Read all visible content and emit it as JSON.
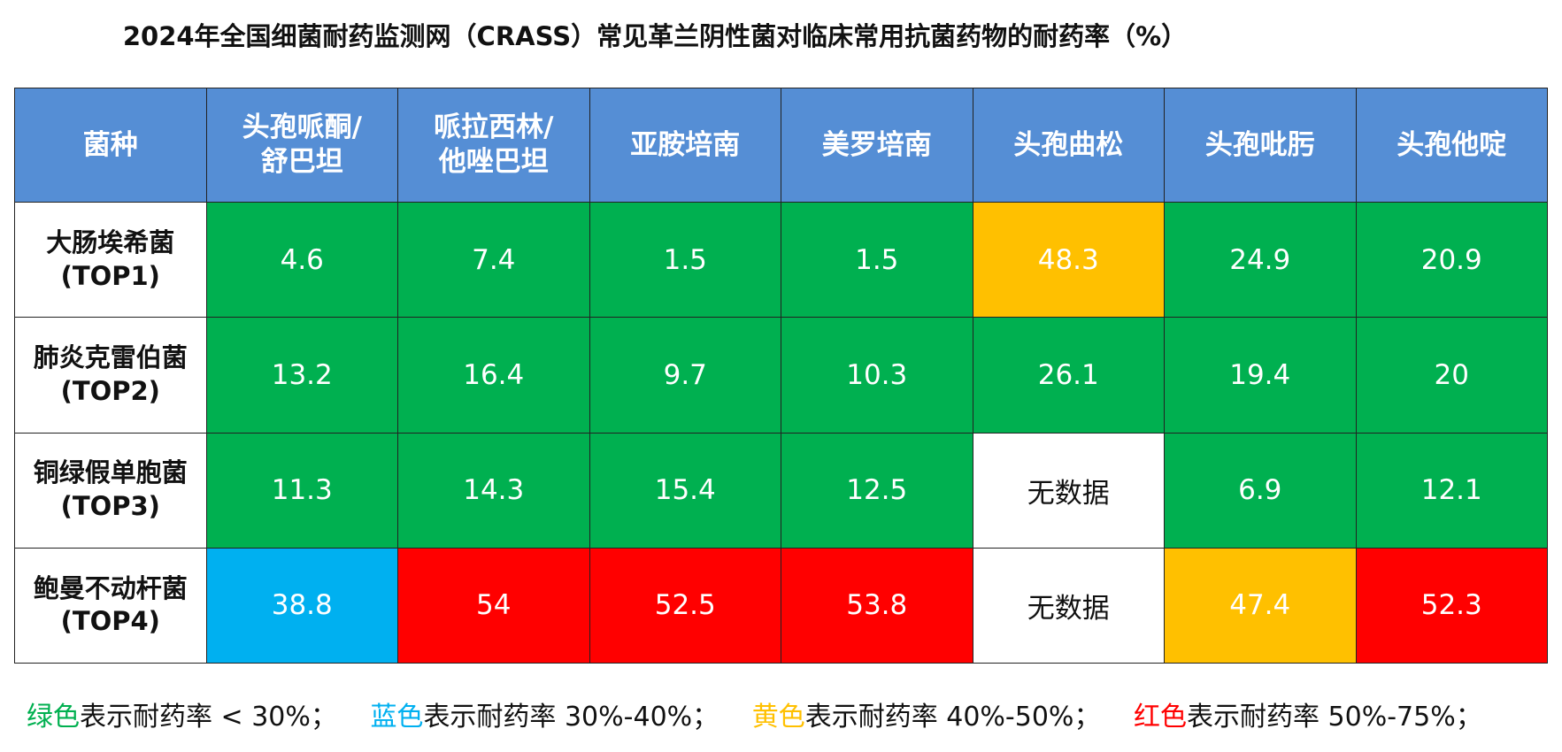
{
  "title": "2024年全国细菌耐药监测网（CRASS）常见革兰阴性菌对临床常用抗菌药物的耐药率（%）",
  "header": {
    "corner": "菌种",
    "drugs": [
      {
        "line1": "头孢哌酮/",
        "line2": "舒巴坦"
      },
      {
        "line1": "哌拉西林/",
        "line2": "他唑巴坦"
      },
      {
        "line1": "亚胺培南",
        "line2": ""
      },
      {
        "line1": "美罗培南",
        "line2": ""
      },
      {
        "line1": "头孢曲松",
        "line2": ""
      },
      {
        "line1": "头孢吡肟",
        "line2": ""
      },
      {
        "line1": "头孢他啶",
        "line2": ""
      }
    ]
  },
  "no_data_label": "无数据",
  "colors": {
    "header": "#558ed5",
    "green": "#00b050",
    "blue": "#00b0f0",
    "yellow": "#ffc000",
    "red": "#ff0000",
    "none": "#ffffff"
  },
  "chart_data": {
    "type": "table",
    "title": "2024年全国细菌耐药监测网（CRASS）常见革兰阴性菌对临床常用抗菌药物的耐药率（%）",
    "columns": [
      "头孢哌酮/舒巴坦",
      "哌拉西林/他唑巴坦",
      "亚胺培南",
      "美罗培南",
      "头孢曲松",
      "头孢吡肟",
      "头孢他啶"
    ],
    "rows": [
      {
        "name": "大肠埃希菌",
        "rank": "(TOP1)",
        "values": [
          4.6,
          7.4,
          1.5,
          1.5,
          48.3,
          24.9,
          20.9
        ]
      },
      {
        "name": "肺炎克雷伯菌",
        "rank": "(TOP2)",
        "values": [
          13.2,
          16.4,
          9.7,
          10.3,
          26.1,
          19.4,
          20
        ]
      },
      {
        "name": "铜绿假单胞菌",
        "rank": "(TOP3)",
        "values": [
          11.3,
          14.3,
          15.4,
          12.5,
          null,
          6.9,
          12.1
        ]
      },
      {
        "name": "鲍曼不动杆菌",
        "rank": "(TOP4)",
        "values": [
          38.8,
          54,
          52.5,
          53.8,
          null,
          47.4,
          52.3
        ]
      }
    ]
  },
  "legend": [
    {
      "color_word": "绿色",
      "text": "表示耐药率 < 30%；",
      "color": "#00b050"
    },
    {
      "color_word": "蓝色",
      "text": "表示耐药率 30%-40%；",
      "color": "#00b0f0"
    },
    {
      "color_word": "黄色",
      "text": "表示耐药率 40%-50%；",
      "color": "#ffc000"
    },
    {
      "color_word": "红色",
      "text": "表示耐药率 50%-75%；",
      "color": "#ff0000"
    }
  ]
}
